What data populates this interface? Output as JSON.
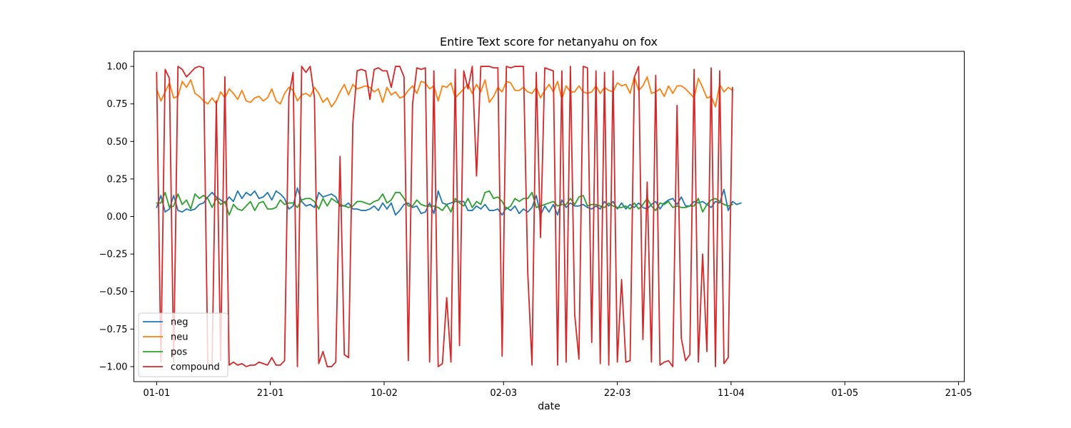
{
  "chart_data": {
    "type": "line",
    "title": "Entire Text score for netanyahu on fox",
    "xlabel": "date",
    "ylabel": "",
    "x_start": "2024-01-01",
    "x_step_days": 0.75,
    "xlim": [
      "2023-12-28",
      "2024-05-22"
    ],
    "ylim": [
      -1.1,
      1.1
    ],
    "xticks": [
      {
        "date": "2024-01-01",
        "label": "01-01"
      },
      {
        "date": "2024-01-21",
        "label": "21-01"
      },
      {
        "date": "2024-02-10",
        "label": "10-02"
      },
      {
        "date": "2024-03-02",
        "label": "02-03"
      },
      {
        "date": "2024-03-22",
        "label": "22-03"
      },
      {
        "date": "2024-04-11",
        "label": "11-04"
      },
      {
        "date": "2024-05-01",
        "label": "01-05"
      },
      {
        "date": "2024-05-21",
        "label": "21-05"
      }
    ],
    "yticks": [
      {
        "value": -1.0,
        "label": "−1.00"
      },
      {
        "value": -0.75,
        "label": "−0.75"
      },
      {
        "value": -0.5,
        "label": "−0.50"
      },
      {
        "value": -0.25,
        "label": "−0.25"
      },
      {
        "value": 0.0,
        "label": "0.00"
      },
      {
        "value": 0.25,
        "label": "0.25"
      },
      {
        "value": 0.5,
        "label": "0.50"
      },
      {
        "value": 0.75,
        "label": "0.75"
      },
      {
        "value": 1.0,
        "label": "1.00"
      }
    ],
    "legend_position": "lower-left",
    "grid": false,
    "series": [
      {
        "name": "neg",
        "color": "#1f77b4",
        "values": [
          0.06,
          0.14,
          0.03,
          0.05,
          0.14,
          0.04,
          0.03,
          0.05,
          0.04,
          0.05,
          0.08,
          0.09,
          0.13,
          0.16,
          0.13,
          0.11,
          0.09,
          0.13,
          0.1,
          0.17,
          0.12,
          0.16,
          0.14,
          0.17,
          0.12,
          0.13,
          0.16,
          0.11,
          0.17,
          0.15,
          0.12,
          0.05,
          0.07,
          0.19,
          0.1,
          0.07,
          0.08,
          0.06,
          0.16,
          0.13,
          0.14,
          0.15,
          0.13,
          0.07,
          0.07,
          0.09,
          0.05,
          0.05,
          0.04,
          0.04,
          0.05,
          0.07,
          0.04,
          0.09,
          0.05,
          0.09,
          0.01,
          0.04,
          0.08,
          0.09,
          0.06,
          0.07,
          0.02,
          0.03,
          0.09,
          0.02,
          0.17,
          0.09,
          0.08,
          0.09,
          0.1,
          0.1,
          0.1,
          0.04,
          0.04,
          0.07,
          0.05,
          0.08,
          0.04,
          0.04,
          0.05,
          0.01,
          0.06,
          0.04,
          0.07,
          0.02,
          0.05,
          0.03,
          0.06,
          0.14,
          0.01,
          0.07,
          0.03,
          0.08,
          0.01,
          0.11,
          0.06,
          0.09,
          0.07,
          0.07,
          0.08,
          0.06,
          0.05,
          0.07,
          0.05,
          0.1,
          0.07,
          0.1,
          0.05,
          0.09,
          0.05,
          0.08,
          0.06,
          0.09,
          0.06,
          0.05,
          0.08,
          0.1,
          0.05,
          0.09,
          0.11,
          0.12,
          0.08,
          0.13,
          0.07,
          0.07,
          0.1,
          0.09,
          0.1,
          0.08,
          0.06,
          0.1,
          0.09,
          0.18,
          0.04,
          0.1,
          0.08,
          0.09
        ]
      },
      {
        "name": "neu",
        "color": "#ff7f0e",
        "values": [
          0.85,
          0.77,
          0.83,
          0.89,
          0.79,
          0.8,
          0.9,
          0.86,
          0.91,
          0.82,
          0.8,
          0.77,
          0.75,
          0.79,
          0.75,
          0.83,
          0.79,
          0.85,
          0.82,
          0.78,
          0.84,
          0.77,
          0.76,
          0.79,
          0.8,
          0.77,
          0.79,
          0.85,
          0.77,
          0.75,
          0.82,
          0.86,
          0.84,
          0.77,
          0.81,
          0.82,
          0.8,
          0.86,
          0.82,
          0.76,
          0.79,
          0.73,
          0.77,
          0.83,
          0.88,
          0.81,
          0.88,
          0.85,
          0.86,
          0.87,
          0.86,
          0.83,
          0.85,
          0.76,
          0.86,
          0.81,
          0.83,
          0.79,
          0.8,
          0.84,
          0.87,
          0.82,
          0.9,
          0.89,
          0.85,
          0.87,
          0.77,
          0.87,
          0.86,
          0.89,
          0.79,
          0.82,
          0.85,
          0.88,
          0.82,
          0.88,
          0.83,
          0.91,
          0.76,
          0.8,
          0.86,
          0.83,
          0.9,
          0.89,
          0.84,
          0.84,
          0.86,
          0.83,
          0.82,
          0.86,
          0.79,
          0.84,
          0.88,
          0.83,
          0.9,
          0.78,
          0.87,
          0.83,
          0.83,
          0.87,
          0.83,
          0.82,
          0.83,
          0.87,
          0.82,
          0.86,
          0.84,
          0.83,
          0.89,
          0.87,
          0.88,
          0.82,
          0.93,
          0.84,
          0.87,
          0.93,
          0.82,
          0.83,
          0.85,
          0.8,
          0.87,
          0.82,
          0.87,
          0.87,
          0.85,
          0.82,
          0.79,
          0.92,
          0.86,
          0.79,
          0.8,
          0.73,
          0.88,
          0.83,
          0.86,
          0.84
        ]
      },
      {
        "name": "pos",
        "color": "#2ca02c",
        "values": [
          0.09,
          0.09,
          0.16,
          0.06,
          0.07,
          0.15,
          0.08,
          0.11,
          0.05,
          0.15,
          0.12,
          0.14,
          0.12,
          0.06,
          0.12,
          0.08,
          0.1,
          0.01,
          0.08,
          0.05,
          0.04,
          0.07,
          0.1,
          0.04,
          0.09,
          0.1,
          0.05,
          0.05,
          0.06,
          0.11,
          0.08,
          0.09,
          0.09,
          0.06,
          0.11,
          0.12,
          0.12,
          0.1,
          0.05,
          0.12,
          0.07,
          0.12,
          0.1,
          0.08,
          0.07,
          0.06,
          0.07,
          0.1,
          0.1,
          0.09,
          0.08,
          0.1,
          0.11,
          0.15,
          0.09,
          0.11,
          0.16,
          0.16,
          0.12,
          0.07,
          0.07,
          0.11,
          0.08,
          0.07,
          0.07,
          0.07,
          0.06,
          0.04,
          0.08,
          0.03,
          0.12,
          0.09,
          0.07,
          0.12,
          0.06,
          0.1,
          0.08,
          0.16,
          0.17,
          0.12,
          0.13,
          0.1,
          0.05,
          0.07,
          0.12,
          0.1,
          0.12,
          0.12,
          0.16,
          0.06,
          0.07,
          0.08,
          0.09,
          0.1,
          0.07,
          0.08,
          0.08,
          0.12,
          0.08,
          0.13,
          0.14,
          0.07,
          0.08,
          0.08,
          0.07,
          0.06,
          0.09,
          0.07,
          0.06,
          0.06,
          0.07,
          0.05,
          0.09,
          0.05,
          0.08,
          0.12,
          0.07,
          0.04,
          0.09,
          0.08,
          0.1,
          0.06,
          0.07,
          0.06,
          0.06,
          0.07,
          0.07,
          0.12,
          0.03,
          0.08,
          0.11,
          0.12,
          0.1,
          0.08,
          0.07,
          0.08
        ]
      },
      {
        "name": "compound",
        "color": "#d62728",
        "values": [
          0.96,
          -0.97,
          0.98,
          0.92,
          -0.97,
          1.0,
          0.98,
          0.93,
          0.96,
          0.99,
          1.0,
          0.99,
          -0.98,
          -0.99,
          0.77,
          -0.96,
          0.93,
          -0.99,
          -0.97,
          -0.99,
          -0.98,
          -1.0,
          -0.99,
          -0.99,
          -0.97,
          -0.98,
          -0.99,
          -0.94,
          -0.99,
          -0.99,
          -0.96,
          0.8,
          0.96,
          -1.0,
          1.0,
          0.96,
          1.0,
          0.79,
          -0.98,
          -0.9,
          -1.0,
          -1.0,
          -0.97,
          0.4,
          -0.92,
          -0.94,
          0.62,
          0.97,
          0.98,
          0.97,
          0.78,
          0.98,
          0.99,
          0.97,
          0.97,
          0.86,
          1.0,
          1.0,
          0.93,
          -0.96,
          0.75,
          0.99,
          0.98,
          0.99,
          -0.97,
          0.97,
          -1.0,
          -0.98,
          -0.54,
          -0.97,
          0.98,
          -0.86,
          0.97,
          0.85,
          1.0,
          0.27,
          1.0,
          1.0,
          1.0,
          0.99,
          0.99,
          -0.93,
          1.0,
          0.99,
          1.0,
          1.0,
          1.0,
          -0.37,
          -0.99,
          0.96,
          -0.14,
          0.99,
          0.98,
          0.97,
          -0.99,
          0.97,
          -0.97,
          1.0,
          -0.65,
          -0.95,
          1.0,
          0.99,
          -0.84,
          0.97,
          -0.98,
          0.96,
          -0.99,
          0.97,
          -0.97,
          -0.42,
          -0.97,
          -0.96,
          0.93,
          1.0,
          -0.82,
          0.23,
          -0.97,
          0.94,
          -0.99,
          -0.97,
          -0.96,
          -1.0,
          0.74,
          -0.81,
          -0.96,
          -0.92,
          0.98,
          -0.97,
          -0.25,
          -0.9,
          0.99,
          -1.0,
          0.97,
          -0.98,
          -0.94,
          0.86
        ]
      }
    ]
  }
}
